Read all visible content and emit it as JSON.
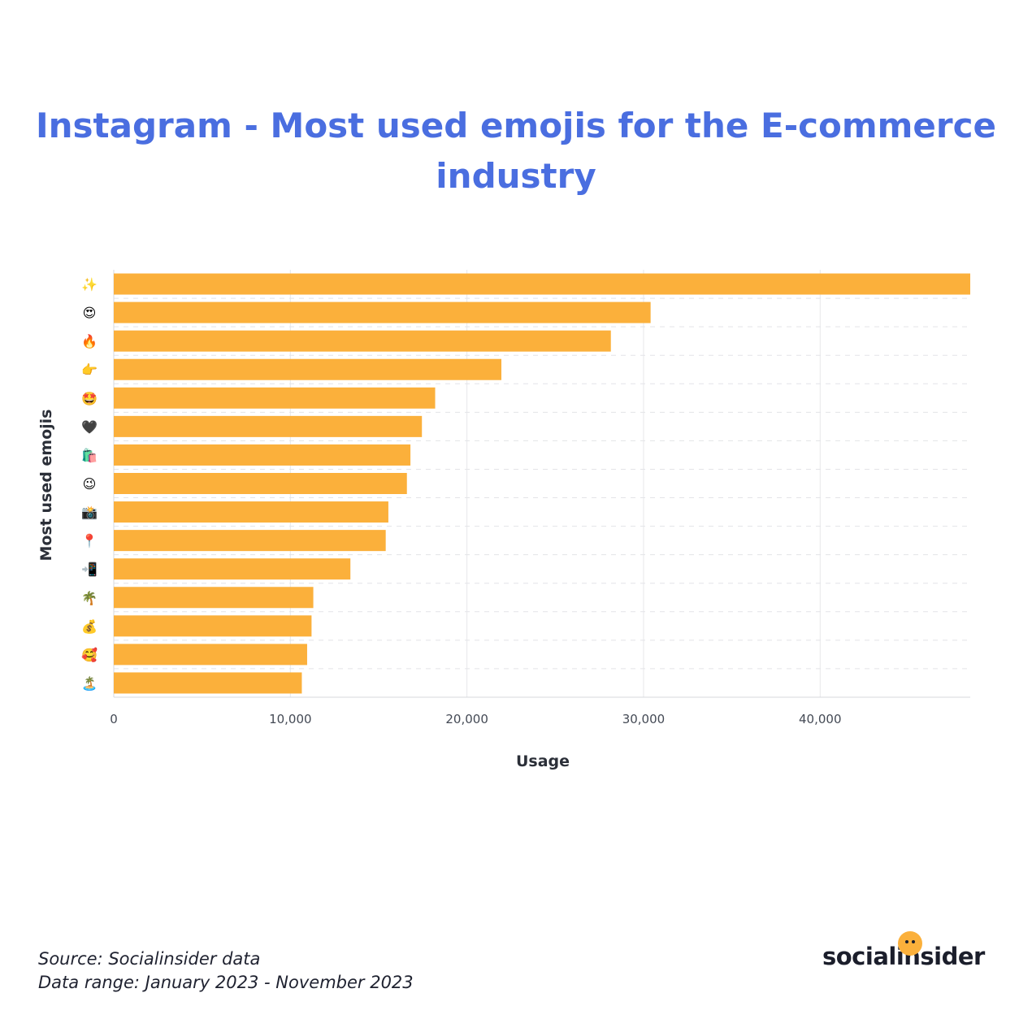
{
  "chart_data": {
    "type": "bar",
    "orientation": "horizontal",
    "title": "Instagram - Most used emojis for the E-commerce industry",
    "xlabel": "Usage",
    "ylabel": "Most used emojis",
    "categories": [
      "✨",
      "😍",
      "🔥",
      "👉",
      "🤩",
      "🖤",
      "🛍️",
      "😉",
      "📸",
      "📍",
      "📲",
      "🌴",
      "💰",
      "🥰",
      "🏝️"
    ],
    "values": [
      48500,
      30400,
      28150,
      21950,
      18200,
      17450,
      16800,
      16600,
      15550,
      15400,
      13400,
      11300,
      11200,
      10950,
      10650
    ],
    "xlim": [
      0,
      48500
    ],
    "xticks": [
      0,
      10000,
      20000,
      30000,
      40000
    ],
    "xtick_labels": [
      "0",
      "10,000",
      "20,000",
      "30,000",
      "40,000"
    ],
    "grid": true,
    "bar_color": "#fbb03b"
  },
  "footer": {
    "source": "Source: Socialinsider data",
    "range": "Data range: January 2023 - November 2023"
  },
  "logo": {
    "text": "socialinsider"
  }
}
